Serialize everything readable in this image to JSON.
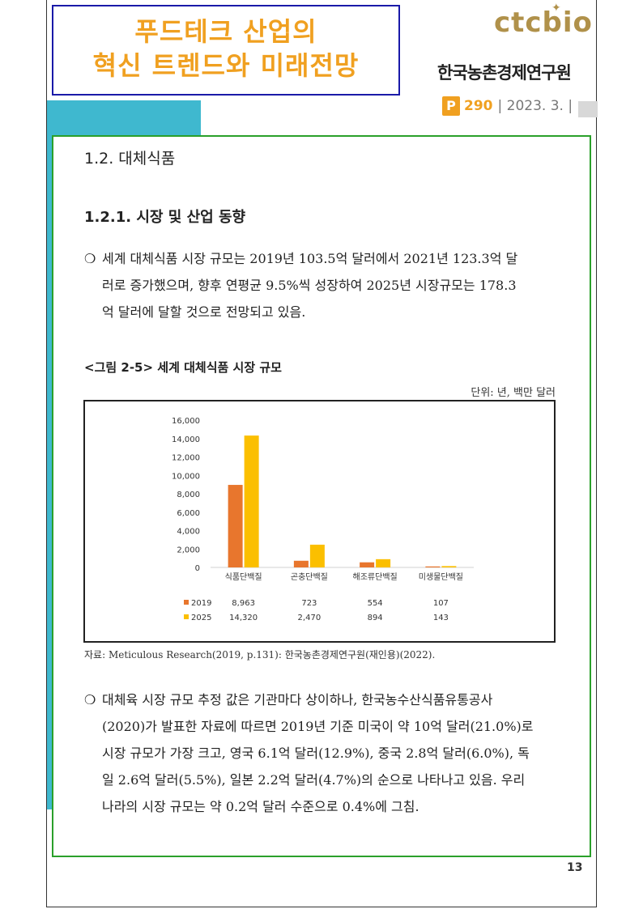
{
  "header": {
    "title_line1": "푸드테크 산업의",
    "title_line2": "혁신 트렌드와 미래전망",
    "logo": "ctcbio",
    "org": "한국농촌경제연구원",
    "badge": "P",
    "issue_number": "290",
    "issue_date": "| 2023. 3. |",
    "colors": {
      "title": "#f0a020",
      "title_border": "#1a1aa8",
      "content_border": "#2aa02a",
      "accent_teal": "#3fb8cf",
      "logo": "#b0914a"
    }
  },
  "section": {
    "heading": "1.2. 대체식품",
    "subheading": "1.2.1. 시장 및 산업 동향"
  },
  "paragraphs": {
    "p1": {
      "bullet": "❍",
      "lines": [
        "세계 대체식품 시장 규모는 2019년 103.5억 달러에서 2021년 123.3억 달",
        "러로 증가했으며, 향후 연평균 9.5%씩 성장하여 2025년 시장규모는 178.3",
        "억 달러에 달할 것으로 전망되고 있음."
      ]
    },
    "p2": {
      "bullet": "❍",
      "lines": [
        "대체육 시장 규모 추정 값은 기관마다 상이하나, 한국농수산식품유통공사",
        "(2020)가 발표한 자료에 따르면 2019년 기준 미국이 약 10억 달러(21.0%)로",
        "시장 규모가 가장 크고, 영국 6.1억 달러(12.9%), 중국 2.8억 달러(6.0%), 독",
        "일 2.6억 달러(5.5%), 일본 2.2억 달러(4.7%)의 순으로 나타나고 있음. 우리",
        "나라의 시장 규모는 약 0.2억 달러 수준으로 0.4%에 그침."
      ]
    }
  },
  "figure": {
    "caption_num": "<그림 2-5>",
    "caption_text": "세계 대체식품 시장 규모",
    "unit": "단위: 년, 백만 달러",
    "source": "자료: Meticulous Research(2019, p.131): 한국농촌경제연구원(재인용)(2022)."
  },
  "chart_data": {
    "type": "bar",
    "categories": [
      "식품단백질",
      "곤충단백질",
      "해조류단백질",
      "미생물단백질"
    ],
    "series": [
      {
        "name": "2019",
        "values": [
          8963,
          723,
          554,
          107
        ],
        "labels": [
          "8,963",
          "723",
          "554",
          "107"
        ],
        "color": "#e8762d"
      },
      {
        "name": "2025",
        "values": [
          14320,
          2470,
          894,
          143
        ],
        "labels": [
          "14,320",
          "2,470",
          "894",
          "143"
        ],
        "color": "#fbbf00"
      }
    ],
    "yticks": [
      "0",
      "2,000",
      "4,000",
      "6,000",
      "8,000",
      "10,000",
      "12,000",
      "14,000",
      "16,000"
    ],
    "ylim": [
      0,
      16000
    ],
    "grid": false,
    "legend": "data-table-below"
  },
  "footer": {
    "page_number": "13"
  }
}
